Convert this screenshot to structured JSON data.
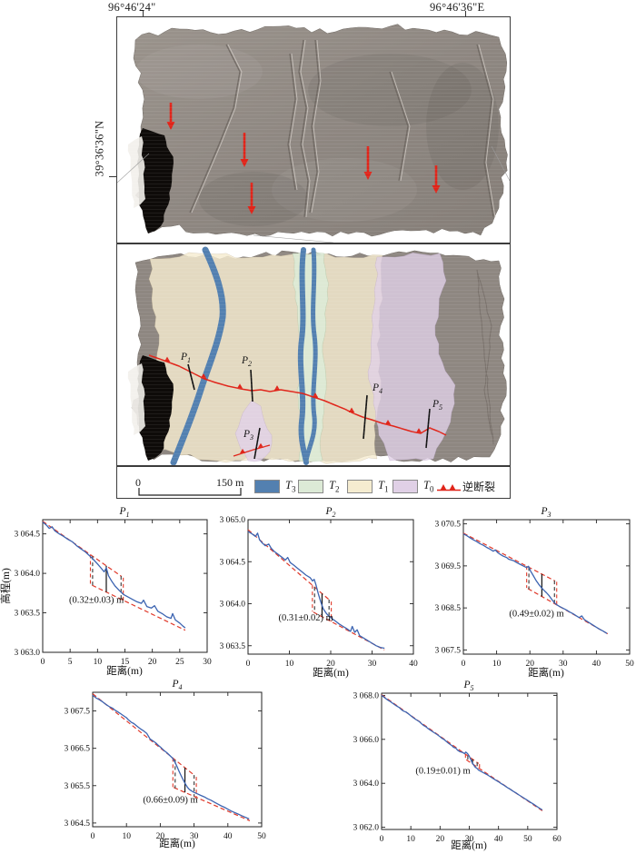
{
  "figure": {
    "coords": {
      "top_left": "96°46'24\"",
      "top_right": "96°46'36\"E",
      "left": "39°36'36\"N"
    }
  },
  "map": {
    "colors": {
      "t3": "#5380b0",
      "t2": "#dcead6",
      "t1": "#f5ecd0",
      "t0": "#e0d0e6",
      "fault": "#e0251a",
      "hillshade": "#8e8781"
    },
    "profiles": [
      {
        "label": "P",
        "sub": "1"
      },
      {
        "label": "P",
        "sub": "2"
      },
      {
        "label": "P",
        "sub": "3"
      },
      {
        "label": "P",
        "sub": "4"
      },
      {
        "label": "P",
        "sub": "5"
      }
    ]
  },
  "legend": {
    "scale_start": "0",
    "scale_end": "150 m",
    "units": [
      {
        "name": "T",
        "sub": "3",
        "color": "#5380b0"
      },
      {
        "name": "T",
        "sub": "2",
        "color": "#dcead6"
      },
      {
        "name": "T",
        "sub": "1",
        "color": "#f5ecd0"
      },
      {
        "name": "T",
        "sub": "0",
        "color": "#e0d0e6"
      }
    ],
    "fault_label": "逆断裂"
  },
  "chart_data": [
    {
      "type": "line",
      "title": "P",
      "title_sub": "1",
      "xlabel": "距离(m)",
      "ylabel": "高程(m)",
      "xlim": [
        0,
        30
      ],
      "ylim": [
        3063.0,
        3064.68
      ],
      "xticks": [
        0,
        5,
        10,
        15,
        20,
        25,
        30
      ],
      "yticks": [
        3063.0,
        3063.5,
        3064.0,
        3064.5
      ],
      "ytick_labels": [
        "3 063.0",
        "3 063.5",
        "3 064.0",
        "3 064.5"
      ],
      "annotation": "(0.32±0.03) m",
      "ann_pos": [
        9.8,
        3063.63
      ],
      "fit_upper": [
        [
          0,
          3064.66
        ],
        [
          14.4,
          3063.96
        ]
      ],
      "fit_lower": [
        [
          9,
          3063.85
        ],
        [
          26,
          3063.28
        ]
      ],
      "marker_xs": [
        9.1,
        11.6,
        14.3
      ],
      "line": [
        [
          0,
          3064.65
        ],
        [
          0.7,
          3064.61
        ],
        [
          1.2,
          3064.57
        ],
        [
          1.7,
          3064.59
        ],
        [
          2.2,
          3064.54
        ],
        [
          3,
          3064.5
        ],
        [
          3.8,
          3064.47
        ],
        [
          4.6,
          3064.43
        ],
        [
          5.4,
          3064.4
        ],
        [
          6.2,
          3064.35
        ],
        [
          7,
          3064.31
        ],
        [
          7.8,
          3064.27
        ],
        [
          8.6,
          3064.22
        ],
        [
          9.2,
          3064.18
        ],
        [
          10,
          3064.12
        ],
        [
          10.6,
          3064.07
        ],
        [
          11.2,
          3064.02
        ],
        [
          11.6,
          3064.07
        ],
        [
          12,
          3063.97
        ],
        [
          12.6,
          3063.9
        ],
        [
          13.2,
          3063.84
        ],
        [
          14,
          3063.78
        ],
        [
          14.8,
          3063.73
        ],
        [
          15.6,
          3063.7
        ],
        [
          16.4,
          3063.67
        ],
        [
          17.2,
          3063.64
        ],
        [
          18,
          3063.62
        ],
        [
          18.4,
          3063.66
        ],
        [
          19,
          3063.58
        ],
        [
          19.8,
          3063.56
        ],
        [
          20.4,
          3063.59
        ],
        [
          21,
          3063.52
        ],
        [
          21.8,
          3063.49
        ],
        [
          22.6,
          3063.45
        ],
        [
          23.4,
          3063.43
        ],
        [
          23.7,
          3063.49
        ],
        [
          24.2,
          3063.41
        ],
        [
          25,
          3063.37
        ],
        [
          25.6,
          3063.33
        ],
        [
          26,
          3063.31
        ]
      ]
    },
    {
      "type": "line",
      "title": "P",
      "title_sub": "2",
      "xlabel": "距离(m)",
      "ylabel": "",
      "xlim": [
        0,
        40
      ],
      "ylim": [
        3063.4,
        3065.0
      ],
      "xticks": [
        0,
        10,
        20,
        30,
        40
      ],
      "yticks": [
        3063.5,
        3064.0,
        3064.5,
        3065.0
      ],
      "ytick_labels": [
        "3 063.5",
        "3 064.0",
        "3 064.5",
        "3 065.0"
      ],
      "annotation": "(0.31±0.02) m",
      "ann_pos": [
        14,
        3063.8
      ],
      "fit_upper": [
        [
          0,
          3064.88
        ],
        [
          19.8,
          3064.04
        ]
      ],
      "fit_lower": [
        [
          15.8,
          3063.9
        ],
        [
          33,
          3063.45
        ]
      ],
      "marker_xs": [
        16.1,
        17.9,
        19.6
      ],
      "line": [
        [
          0,
          3064.86
        ],
        [
          1,
          3064.83
        ],
        [
          1.8,
          3064.8
        ],
        [
          2.3,
          3064.84
        ],
        [
          2.8,
          3064.76
        ],
        [
          3.5,
          3064.72
        ],
        [
          4.2,
          3064.69
        ],
        [
          5,
          3064.71
        ],
        [
          5.6,
          3064.66
        ],
        [
          6.4,
          3064.62
        ],
        [
          7.2,
          3064.59
        ],
        [
          8,
          3064.56
        ],
        [
          9,
          3064.52
        ],
        [
          9.6,
          3064.55
        ],
        [
          10.2,
          3064.49
        ],
        [
          11,
          3064.46
        ],
        [
          12,
          3064.42
        ],
        [
          13,
          3064.38
        ],
        [
          14,
          3064.34
        ],
        [
          15,
          3064.31
        ],
        [
          15.6,
          3064.27
        ],
        [
          16,
          3064.29
        ],
        [
          16.4,
          3064.23
        ],
        [
          17,
          3064.12
        ],
        [
          17.6,
          3064.02
        ],
        [
          18.2,
          3063.94
        ],
        [
          19,
          3063.88
        ],
        [
          19.6,
          3063.85
        ],
        [
          20.4,
          3063.82
        ],
        [
          21.2,
          3063.79
        ],
        [
          22,
          3063.76
        ],
        [
          23,
          3063.73
        ],
        [
          24,
          3063.7
        ],
        [
          24.8,
          3063.67
        ],
        [
          25.2,
          3063.73
        ],
        [
          25.8,
          3063.66
        ],
        [
          26.4,
          3063.69
        ],
        [
          27,
          3063.62
        ],
        [
          28,
          3063.59
        ],
        [
          29,
          3063.56
        ],
        [
          30,
          3063.53
        ],
        [
          31,
          3063.5
        ],
        [
          32,
          3063.48
        ],
        [
          33,
          3063.47
        ]
      ]
    },
    {
      "type": "line",
      "title": "P",
      "title_sub": "3",
      "xlabel": "距离(m)",
      "ylabel": "",
      "xlim": [
        0,
        50
      ],
      "ylim": [
        3067.4,
        3070.6
      ],
      "xticks": [
        0,
        10,
        20,
        30,
        40,
        50
      ],
      "yticks": [
        3067.5,
        3068.5,
        3069.5,
        3070.5
      ],
      "ytick_labels": [
        "3 067.5",
        "3 068.5",
        "3 069.5",
        "3 070.5"
      ],
      "annotation": "(0.49±0.02) m",
      "ann_pos": [
        22,
        3068.3
      ],
      "fit_upper": [
        [
          0,
          3070.28
        ],
        [
          27.6,
          3069.14
        ]
      ],
      "fit_lower": [
        [
          19.4,
          3068.96
        ],
        [
          43.5,
          3067.88
        ]
      ],
      "marker_xs": [
        19.7,
        23.6,
        27.4
      ],
      "line": [
        [
          0,
          3070.26
        ],
        [
          1,
          3070.22
        ],
        [
          2,
          3070.17
        ],
        [
          3,
          3070.12
        ],
        [
          4,
          3070.08
        ],
        [
          5,
          3070.03
        ],
        [
          6,
          3069.99
        ],
        [
          7,
          3069.94
        ],
        [
          8,
          3069.9
        ],
        [
          9,
          3069.85
        ],
        [
          9.6,
          3069.88
        ],
        [
          10.4,
          3069.81
        ],
        [
          11.2,
          3069.77
        ],
        [
          12,
          3069.73
        ],
        [
          13,
          3069.7
        ],
        [
          13.6,
          3069.66
        ],
        [
          14.4,
          3069.64
        ],
        [
          15.2,
          3069.62
        ],
        [
          16,
          3069.58
        ],
        [
          17,
          3069.54
        ],
        [
          18,
          3069.5
        ],
        [
          19,
          3069.46
        ],
        [
          19.6,
          3069.49
        ],
        [
          20.2,
          3069.38
        ],
        [
          21,
          3069.27
        ],
        [
          21.8,
          3069.16
        ],
        [
          22.6,
          3069.07
        ],
        [
          23.4,
          3068.99
        ],
        [
          24.2,
          3068.92
        ],
        [
          25,
          3068.86
        ],
        [
          25.8,
          3068.79
        ],
        [
          26.6,
          3068.7
        ],
        [
          27.4,
          3068.62
        ],
        [
          28.2,
          3068.57
        ],
        [
          29,
          3068.53
        ],
        [
          30,
          3068.49
        ],
        [
          31,
          3068.45
        ],
        [
          32,
          3068.4
        ],
        [
          33,
          3068.36
        ],
        [
          34,
          3068.31
        ],
        [
          34.8,
          3068.27
        ],
        [
          35.6,
          3068.31
        ],
        [
          36.4,
          3068.22
        ],
        [
          37.2,
          3068.18
        ],
        [
          38,
          3068.14
        ],
        [
          39,
          3068.09
        ],
        [
          40,
          3068.04
        ],
        [
          41,
          3067.99
        ],
        [
          42,
          3067.95
        ],
        [
          43.2,
          3067.89
        ]
      ]
    },
    {
      "type": "line",
      "title": "P",
      "title_sub": "4",
      "xlabel": "距离(m)",
      "ylabel": "",
      "xlim": [
        0,
        50
      ],
      "ylim": [
        3064.4,
        3068.0
      ],
      "xticks": [
        0,
        10,
        20,
        30,
        40,
        50
      ],
      "yticks": [
        3064.5,
        3065.5,
        3066.5,
        3067.5
      ],
      "ytick_labels": [
        "3 064.5",
        "3 065.5",
        "3 066.5",
        "3 067.5"
      ],
      "annotation": "(0.66±0.09) m",
      "ann_pos": [
        23,
        3065.05
      ],
      "fit_upper": [
        [
          0,
          3067.96
        ],
        [
          30.2,
          3065.77
        ]
      ],
      "fit_lower": [
        [
          24,
          3065.45
        ],
        [
          46.5,
          3064.56
        ]
      ],
      "marker_xs": [
        24.4,
        27.3,
        30.0
      ],
      "line": [
        [
          0,
          3067.92
        ],
        [
          1,
          3067.85
        ],
        [
          2,
          3067.8
        ],
        [
          3,
          3067.74
        ],
        [
          4,
          3067.67
        ],
        [
          5,
          3067.61
        ],
        [
          6,
          3067.57
        ],
        [
          6.6,
          3067.52
        ],
        [
          7.4,
          3067.48
        ],
        [
          8.2,
          3067.43
        ],
        [
          9,
          3067.38
        ],
        [
          10,
          3067.32
        ],
        [
          10.6,
          3067.26
        ],
        [
          11.4,
          3067.2
        ],
        [
          12.2,
          3067.16
        ],
        [
          13,
          3067.1
        ],
        [
          14,
          3067.03
        ],
        [
          15,
          3066.97
        ],
        [
          16,
          3066.9
        ],
        [
          16.4,
          3066.84
        ],
        [
          17,
          3066.75
        ],
        [
          17.8,
          3066.7
        ],
        [
          18.6,
          3066.65
        ],
        [
          19.4,
          3066.58
        ],
        [
          20.2,
          3066.52
        ],
        [
          21,
          3066.45
        ],
        [
          22,
          3066.38
        ],
        [
          22.8,
          3066.31
        ],
        [
          23.6,
          3066.24
        ],
        [
          24.4,
          3066.12
        ],
        [
          25,
          3066.0
        ],
        [
          25.6,
          3065.88
        ],
        [
          26.2,
          3065.76
        ],
        [
          26.8,
          3065.65
        ],
        [
          27.4,
          3065.55
        ],
        [
          28,
          3065.46
        ],
        [
          28.6,
          3065.4
        ],
        [
          29.4,
          3065.35
        ],
        [
          30,
          3065.32
        ],
        [
          31,
          3065.28
        ],
        [
          32,
          3065.24
        ],
        [
          33,
          3065.2
        ],
        [
          34,
          3065.15
        ],
        [
          35,
          3065.11
        ],
        [
          36,
          3065.06
        ],
        [
          37,
          3065.01
        ],
        [
          38,
          3064.96
        ],
        [
          39,
          3064.92
        ],
        [
          40,
          3064.87
        ],
        [
          41,
          3064.82
        ],
        [
          42,
          3064.78
        ],
        [
          43,
          3064.74
        ],
        [
          44,
          3064.7
        ],
        [
          45,
          3064.66
        ],
        [
          46.3,
          3064.61
        ]
      ]
    },
    {
      "type": "line",
      "title": "P",
      "title_sub": "5",
      "xlabel": "距离(m)",
      "ylabel": "",
      "xlim": [
        0,
        60
      ],
      "ylim": [
        3061.9,
        3068.1
      ],
      "xticks": [
        0,
        10,
        20,
        30,
        40,
        50,
        60
      ],
      "yticks": [
        3062.0,
        3064.0,
        3066.0,
        3068.0
      ],
      "ytick_labels": [
        "3 062.0",
        "3 064.0",
        "3 066.0",
        "3 068.0"
      ],
      "annotation": "(0.19±0.01) m",
      "ann_pos": [
        21,
        3064.45
      ],
      "fit_upper": [
        [
          0,
          3068.03
        ],
        [
          33.2,
          3064.9
        ]
      ],
      "fit_lower": [
        [
          29,
          3065.07
        ],
        [
          55,
          3062.75
        ]
      ],
      "marker_xs": [
        29.5,
        31.1,
        32.7
      ],
      "line": [
        [
          0,
          3068.0
        ],
        [
          1,
          3067.9
        ],
        [
          2,
          3067.8
        ],
        [
          3,
          3067.72
        ],
        [
          4,
          3067.62
        ],
        [
          5,
          3067.53
        ],
        [
          6,
          3067.45
        ],
        [
          7,
          3067.33
        ],
        [
          7.6,
          3067.28
        ],
        [
          8.4,
          3067.24
        ],
        [
          9.2,
          3067.16
        ],
        [
          10,
          3067.07
        ],
        [
          11,
          3066.97
        ],
        [
          12,
          3066.88
        ],
        [
          13,
          3066.8
        ],
        [
          13.6,
          3066.72
        ],
        [
          14.4,
          3066.63
        ],
        [
          15.2,
          3066.57
        ],
        [
          16,
          3066.48
        ],
        [
          17,
          3066.39
        ],
        [
          18,
          3066.3
        ],
        [
          19,
          3066.22
        ],
        [
          20,
          3066.12
        ],
        [
          20.6,
          3066.05
        ],
        [
          21.4,
          3065.99
        ],
        [
          22.2,
          3065.9
        ],
        [
          23,
          3065.81
        ],
        [
          24,
          3065.72
        ],
        [
          24.6,
          3065.64
        ],
        [
          25.4,
          3065.6
        ],
        [
          26,
          3065.51
        ],
        [
          26.8,
          3065.44
        ],
        [
          27.6,
          3065.41
        ],
        [
          28.4,
          3065.35
        ],
        [
          28.8,
          3065.42
        ],
        [
          29.4,
          3065.35
        ],
        [
          30,
          3065.23
        ],
        [
          30.6,
          3065.06
        ],
        [
          31,
          3064.94
        ],
        [
          31.6,
          3064.82
        ],
        [
          32,
          3064.74
        ],
        [
          32.6,
          3064.68
        ],
        [
          33.2,
          3064.6
        ],
        [
          34,
          3064.54
        ],
        [
          35,
          3064.47
        ],
        [
          36,
          3064.4
        ],
        [
          37,
          3064.32
        ],
        [
          38,
          3064.23
        ],
        [
          39,
          3064.15
        ],
        [
          40,
          3064.07
        ],
        [
          41,
          3063.98
        ],
        [
          42,
          3063.9
        ],
        [
          43,
          3063.81
        ],
        [
          44,
          3063.73
        ],
        [
          45,
          3063.64
        ],
        [
          46,
          3063.56
        ],
        [
          47,
          3063.47
        ],
        [
          48,
          3063.39
        ],
        [
          49,
          3063.3
        ],
        [
          50,
          3063.22
        ],
        [
          51,
          3063.13
        ],
        [
          52,
          3063.05
        ],
        [
          53,
          3062.96
        ],
        [
          54,
          3062.87
        ],
        [
          55,
          3062.79
        ]
      ]
    }
  ]
}
